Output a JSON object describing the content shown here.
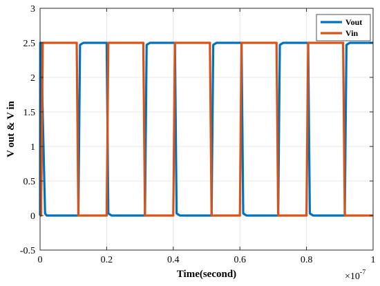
{
  "chart_data": {
    "type": "line",
    "title": "",
    "xlabel": "Time(second)",
    "ylabel": "V out & V in",
    "x_multiplier": {
      "base": "×10",
      "exponent": "-7"
    },
    "xlim": [
      0,
      1e-07
    ],
    "ylim": [
      -0.5,
      3
    ],
    "xticks": [
      0,
      2e-08,
      4e-08,
      6e-08,
      8e-08,
      1e-07
    ],
    "xtick_labels": [
      "0",
      "0.2",
      "0.4",
      "0.6",
      "0.8",
      "1"
    ],
    "yticks": [
      -0.5,
      0,
      0.5,
      1,
      1.5,
      2,
      2.5,
      3
    ],
    "ytick_labels": [
      "-0.5",
      "0",
      "0.5",
      "1",
      "1.5",
      "2",
      "2.5",
      "3"
    ],
    "grid": true,
    "legend_placement": "top-right",
    "series": [
      {
        "name": "Vout",
        "color": "#0072BD",
        "x": [
          0,
          5e-11,
          3e-10,
          1.5e-09,
          2e-09,
          1.15e-08,
          1.2e-08,
          1.3e-08,
          2e-08,
          2.05e-08,
          2.15e-08,
          3.15e-08,
          3.2e-08,
          3.3e-08,
          4.05e-08,
          4.1e-08,
          4.2e-08,
          5.15e-08,
          5.2e-08,
          5.3e-08,
          6.05e-08,
          6.1e-08,
          6.2e-08,
          7.15e-08,
          7.2e-08,
          7.3e-08,
          8.05e-08,
          8.1e-08,
          8.2e-08,
          9.15e-08,
          9.2e-08,
          9.3e-08,
          1e-07
        ],
        "y": [
          0,
          2.5,
          2.5,
          0.03,
          0,
          0,
          2.47,
          2.5,
          2.5,
          0.03,
          0,
          0,
          2.47,
          2.5,
          2.5,
          0.03,
          0,
          0,
          2.47,
          2.5,
          2.5,
          0.03,
          0,
          0,
          2.47,
          2.5,
          2.5,
          0.03,
          0,
          0,
          2.47,
          2.5,
          2.5
        ]
      },
      {
        "name": "Vin",
        "color": "#D95319",
        "x": [
          0,
          3e-10,
          8e-10,
          1.1e-08,
          1.15e-08,
          2e-08,
          2.05e-08,
          3.1e-08,
          3.15e-08,
          4e-08,
          4.05e-08,
          5.1e-08,
          5.15e-08,
          6e-08,
          6.05e-08,
          7.1e-08,
          7.15e-08,
          8e-08,
          8.05e-08,
          9.1e-08,
          9.15e-08,
          1e-07
        ],
        "y": [
          0,
          0,
          2.5,
          2.5,
          0,
          0,
          2.5,
          2.5,
          0,
          0,
          2.5,
          2.5,
          0,
          0,
          2.5,
          2.5,
          0,
          0,
          2.5,
          2.5,
          0,
          0
        ]
      }
    ]
  }
}
